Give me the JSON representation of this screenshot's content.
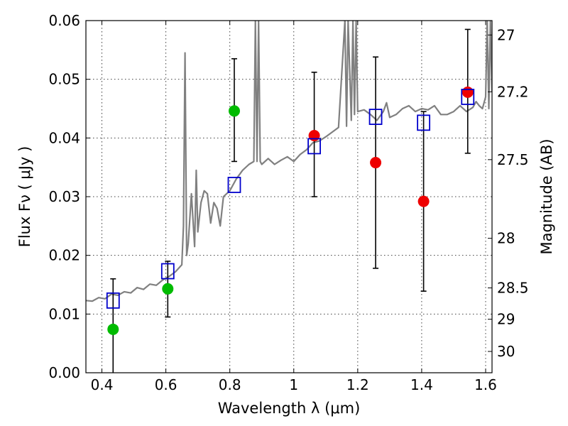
{
  "chart_data": {
    "type": "scatter",
    "xlabel": "Wavelength  λ (μm)",
    "ylabel": "Flux  Fν  ( μJy )",
    "ylabel_right": "Magnitude (AB)",
    "xlim": [
      0.35,
      1.62
    ],
    "ylim": [
      0.0,
      0.06
    ],
    "grid": true,
    "x_ticks": [
      0.4,
      0.6,
      0.8,
      1.0,
      1.2,
      1.4,
      1.6
    ],
    "x_tick_labels": [
      "0.4",
      "0.6",
      "0.8",
      "1",
      "1.2",
      "1.4",
      "1.6"
    ],
    "y_ticks": [
      0.0,
      0.01,
      0.02,
      0.03,
      0.04,
      0.05,
      0.06
    ],
    "y_tick_labels": [
      "0.00",
      "0.01",
      "0.02",
      "0.03",
      "0.04",
      "0.05",
      "0.06"
    ],
    "mag_ticks": [
      27,
      27.2,
      27.5,
      28,
      28.5,
      29,
      30
    ],
    "mag_tick_labels": [
      "27",
      "27.2",
      "27.5",
      "28",
      "28.5",
      "29",
      "30"
    ],
    "colors": {
      "spectrum": "#808080",
      "detection": "#00bb00",
      "upper": "#ee0000",
      "model": "#0000cc",
      "errorbar": "#000000"
    },
    "errorbars": [
      {
        "x": 0.435,
        "low": 0.0,
        "high": 0.016
      },
      {
        "x": 0.606,
        "low": 0.0095,
        "high": 0.019
      },
      {
        "x": 0.814,
        "low": 0.036,
        "high": 0.0535
      },
      {
        "x": 1.064,
        "low": 0.03,
        "high": 0.0512
      },
      {
        "x": 1.256,
        "low": 0.0178,
        "high": 0.0538
      },
      {
        "x": 1.406,
        "low": 0.0139,
        "high": 0.0445
      },
      {
        "x": 1.544,
        "low": 0.0374,
        "high": 0.0585
      }
    ],
    "series": [
      {
        "name": "green points",
        "color_key": "detection",
        "marker": "circle",
        "x": [
          0.435,
          0.606,
          0.814
        ],
        "y": [
          0.0074,
          0.0143,
          0.0446
        ]
      },
      {
        "name": "red points",
        "color_key": "upper",
        "marker": "circle",
        "x": [
          1.064,
          1.256,
          1.406,
          1.544
        ],
        "y": [
          0.0404,
          0.0358,
          0.0292,
          0.0478
        ]
      },
      {
        "name": "model squares",
        "color_key": "model",
        "marker": "square",
        "x": [
          0.435,
          0.606,
          0.814,
          1.064,
          1.256,
          1.406,
          1.544
        ],
        "y": [
          0.0123,
          0.0173,
          0.032,
          0.0386,
          0.0436,
          0.0426,
          0.047
        ]
      }
    ],
    "spectrum": {
      "x": [
        0.35,
        0.37,
        0.39,
        0.41,
        0.43,
        0.45,
        0.47,
        0.49,
        0.51,
        0.53,
        0.55,
        0.57,
        0.59,
        0.61,
        0.63,
        0.65,
        0.655,
        0.66,
        0.665,
        0.67,
        0.68,
        0.69,
        0.695,
        0.7,
        0.71,
        0.72,
        0.73,
        0.74,
        0.75,
        0.76,
        0.77,
        0.78,
        0.8,
        0.82,
        0.84,
        0.86,
        0.875,
        0.88,
        0.885,
        0.89,
        0.895,
        0.9,
        0.92,
        0.94,
        0.96,
        0.98,
        1.0,
        1.02,
        1.04,
        1.06,
        1.08,
        1.1,
        1.12,
        1.14,
        1.16,
        1.165,
        1.17,
        1.18,
        1.185,
        1.19,
        1.195,
        1.2,
        1.22,
        1.24,
        1.26,
        1.28,
        1.29,
        1.3,
        1.32,
        1.34,
        1.36,
        1.38,
        1.4,
        1.42,
        1.44,
        1.46,
        1.48,
        1.5,
        1.52,
        1.54,
        1.56,
        1.57,
        1.58,
        1.59,
        1.6,
        1.605,
        1.61,
        1.615,
        1.62
      ],
      "y": [
        0.0123,
        0.0122,
        0.0128,
        0.0126,
        0.0134,
        0.0132,
        0.0138,
        0.0136,
        0.0145,
        0.0142,
        0.0151,
        0.0149,
        0.0158,
        0.0164,
        0.0172,
        0.0184,
        0.025,
        0.0545,
        0.02,
        0.022,
        0.0305,
        0.0215,
        0.0345,
        0.024,
        0.029,
        0.031,
        0.0305,
        0.0255,
        0.029,
        0.028,
        0.025,
        0.03,
        0.031,
        0.033,
        0.0345,
        0.0355,
        0.036,
        0.06,
        0.036,
        0.06,
        0.036,
        0.0355,
        0.0365,
        0.0355,
        0.0362,
        0.0368,
        0.036,
        0.0372,
        0.038,
        0.0392,
        0.0395,
        0.0402,
        0.041,
        0.0418,
        0.06,
        0.042,
        0.06,
        0.043,
        0.06,
        0.044,
        0.06,
        0.0445,
        0.0448,
        0.044,
        0.043,
        0.0445,
        0.046,
        0.0435,
        0.044,
        0.045,
        0.0455,
        0.0445,
        0.045,
        0.0448,
        0.0455,
        0.044,
        0.044,
        0.0445,
        0.0455,
        0.0445,
        0.0452,
        0.0462,
        0.0455,
        0.045,
        0.047,
        0.06,
        0.045,
        0.06,
        0.0478
      ]
    }
  }
}
